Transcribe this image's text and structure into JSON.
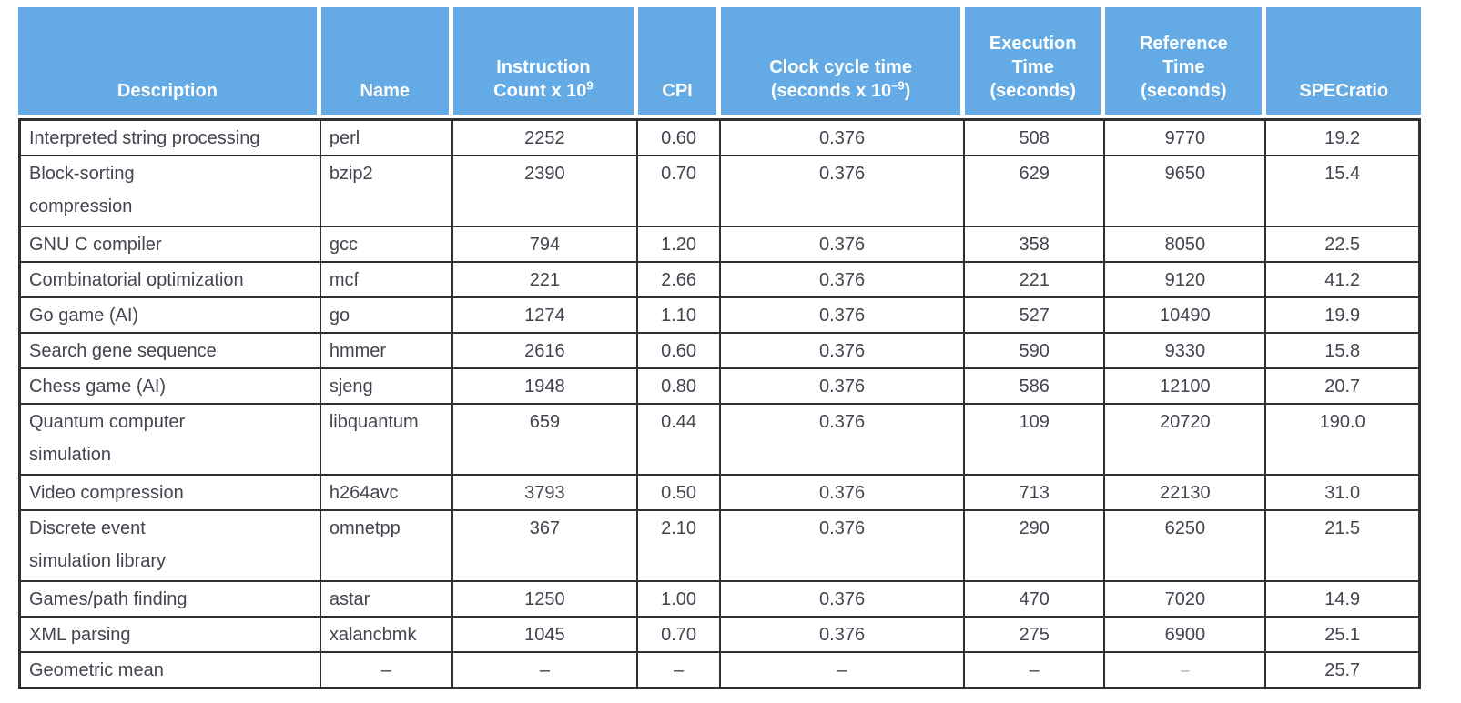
{
  "colors": {
    "header_bg": "#64AAE5",
    "header_text": "#FFFFFF",
    "body_text": "#42454F",
    "grid_line": "#2F3033"
  },
  "table": {
    "columns": [
      {
        "key": "description",
        "label": "Description",
        "align": "left"
      },
      {
        "key": "name",
        "label": "Name",
        "align": "left"
      },
      {
        "key": "instruction_count",
        "label": "Instruction\nCount x 10^{9}",
        "align": "center"
      },
      {
        "key": "cpi",
        "label": "CPI",
        "align": "center"
      },
      {
        "key": "clock_cycle_time",
        "label": "Clock cycle time\n(seconds x 10^{–9})",
        "align": "center"
      },
      {
        "key": "execution_time",
        "label": "Execution\nTime\n(seconds)",
        "align": "center"
      },
      {
        "key": "reference_time",
        "label": "Reference\nTime\n(seconds)",
        "align": "center"
      },
      {
        "key": "specratio",
        "label": "SPECratio",
        "align": "center"
      }
    ],
    "rows": [
      {
        "id": "perl",
        "lines": 1,
        "values": {
          "description": "Interpreted string processing",
          "name": "perl",
          "instruction_count": "2252",
          "cpi": "0.60",
          "clock_cycle_time": "0.376",
          "execution_time": "508",
          "reference_time": "9770",
          "specratio": "19.2"
        }
      },
      {
        "id": "bzip2",
        "lines": 2,
        "values": {
          "description": "Block-sorting\ncompression",
          "name": "bzip2",
          "instruction_count": "2390",
          "cpi": "0.70",
          "clock_cycle_time": "0.376",
          "execution_time": "629",
          "reference_time": "9650",
          "specratio": "15.4"
        }
      },
      {
        "id": "gcc",
        "lines": 1,
        "values": {
          "description": "GNU C compiler",
          "name": "gcc",
          "instruction_count": "794",
          "cpi": "1.20",
          "clock_cycle_time": "0.376",
          "execution_time": "358",
          "reference_time": "8050",
          "specratio": "22.5"
        }
      },
      {
        "id": "mcf",
        "lines": 1,
        "values": {
          "description": "Combinatorial optimization",
          "name": "mcf",
          "instruction_count": "221",
          "cpi": "2.66",
          "clock_cycle_time": "0.376",
          "execution_time": "221",
          "reference_time": "9120",
          "specratio": "41.2"
        }
      },
      {
        "id": "go",
        "lines": 1,
        "values": {
          "description": "Go game (AI)",
          "name": "go",
          "instruction_count": "1274",
          "cpi": "1.10",
          "clock_cycle_time": "0.376",
          "execution_time": "527",
          "reference_time": "10490",
          "specratio": "19.9"
        }
      },
      {
        "id": "hmmer",
        "lines": 1,
        "values": {
          "description": "Search gene sequence",
          "name": "hmmer",
          "instruction_count": "2616",
          "cpi": "0.60",
          "clock_cycle_time": "0.376",
          "execution_time": "590",
          "reference_time": "9330",
          "specratio": "15.8"
        }
      },
      {
        "id": "sjeng",
        "lines": 1,
        "values": {
          "description": "Chess game (AI)",
          "name": "sjeng",
          "instruction_count": "1948",
          "cpi": "0.80",
          "clock_cycle_time": "0.376",
          "execution_time": "586",
          "reference_time": "12100",
          "specratio": "20.7"
        }
      },
      {
        "id": "libquantum",
        "lines": 2,
        "values": {
          "description": "Quantum computer\nsimulation",
          "name": "libquantum",
          "instruction_count": "659",
          "cpi": "0.44",
          "clock_cycle_time": "0.376",
          "execution_time": "109",
          "reference_time": "20720",
          "specratio": "190.0"
        }
      },
      {
        "id": "h264avc",
        "lines": 1,
        "values": {
          "description": "Video compression",
          "name": "h264avc",
          "instruction_count": "3793",
          "cpi": "0.50",
          "clock_cycle_time": "0.376",
          "execution_time": "713",
          "reference_time": "22130",
          "specratio": "31.0"
        }
      },
      {
        "id": "omnetpp",
        "lines": 2,
        "values": {
          "description": "Discrete event\nsimulation library",
          "name": "omnetpp",
          "instruction_count": "367",
          "cpi": "2.10",
          "clock_cycle_time": "0.376",
          "execution_time": "290",
          "reference_time": "6250",
          "specratio": "21.5"
        }
      },
      {
        "id": "astar",
        "lines": 1,
        "values": {
          "description": "Games/path finding",
          "name": "astar",
          "instruction_count": "1250",
          "cpi": "1.00",
          "clock_cycle_time": "0.376",
          "execution_time": "470",
          "reference_time": "7020",
          "specratio": "14.9"
        }
      },
      {
        "id": "xalancbmk",
        "lines": 1,
        "values": {
          "description": "XML parsing",
          "name": "xalancbmk",
          "instruction_count": "1045",
          "cpi": "0.70",
          "clock_cycle_time": "0.376",
          "execution_time": "275",
          "reference_time": "6900",
          "specratio": "25.1"
        }
      },
      {
        "id": "geometric-mean",
        "lines": 1,
        "muted_cells": [
          "reference_time"
        ],
        "values": {
          "description": "Geometric mean",
          "name": "–",
          "instruction_count": "–",
          "cpi": "–",
          "clock_cycle_time": "–",
          "execution_time": "–",
          "reference_time": "–",
          "specratio": "25.7"
        }
      }
    ]
  },
  "chart_data": {
    "type": "table",
    "columns": [
      "Description",
      "Name",
      "Instruction Count x 10^9",
      "CPI",
      "Clock cycle time (seconds x 10^-9)",
      "Execution Time (seconds)",
      "Reference Time (seconds)",
      "SPECratio"
    ],
    "rows": [
      [
        "Interpreted string processing",
        "perl",
        2252,
        0.6,
        0.376,
        508,
        9770,
        19.2
      ],
      [
        "Block-sorting compression",
        "bzip2",
        2390,
        0.7,
        0.376,
        629,
        9650,
        15.4
      ],
      [
        "GNU C compiler",
        "gcc",
        794,
        1.2,
        0.376,
        358,
        8050,
        22.5
      ],
      [
        "Combinatorial optimization",
        "mcf",
        221,
        2.66,
        0.376,
        221,
        9120,
        41.2
      ],
      [
        "Go game (AI)",
        "go",
        1274,
        1.1,
        0.376,
        527,
        10490,
        19.9
      ],
      [
        "Search gene sequence",
        "hmmer",
        2616,
        0.6,
        0.376,
        590,
        9330,
        15.8
      ],
      [
        "Chess game (AI)",
        "sjeng",
        1948,
        0.8,
        0.376,
        586,
        12100,
        20.7
      ],
      [
        "Quantum computer simulation",
        "libquantum",
        659,
        0.44,
        0.376,
        109,
        20720,
        190.0
      ],
      [
        "Video compression",
        "h264avc",
        3793,
        0.5,
        0.376,
        713,
        22130,
        31.0
      ],
      [
        "Discrete event simulation library",
        "omnetpp",
        367,
        2.1,
        0.376,
        290,
        6250,
        21.5
      ],
      [
        "Games/path finding",
        "astar",
        1250,
        1.0,
        0.376,
        470,
        7020,
        14.9
      ],
      [
        "XML parsing",
        "xalancbmk",
        1045,
        0.7,
        0.376,
        275,
        6900,
        25.1
      ],
      [
        "Geometric mean",
        null,
        null,
        null,
        null,
        null,
        null,
        25.7
      ]
    ]
  }
}
